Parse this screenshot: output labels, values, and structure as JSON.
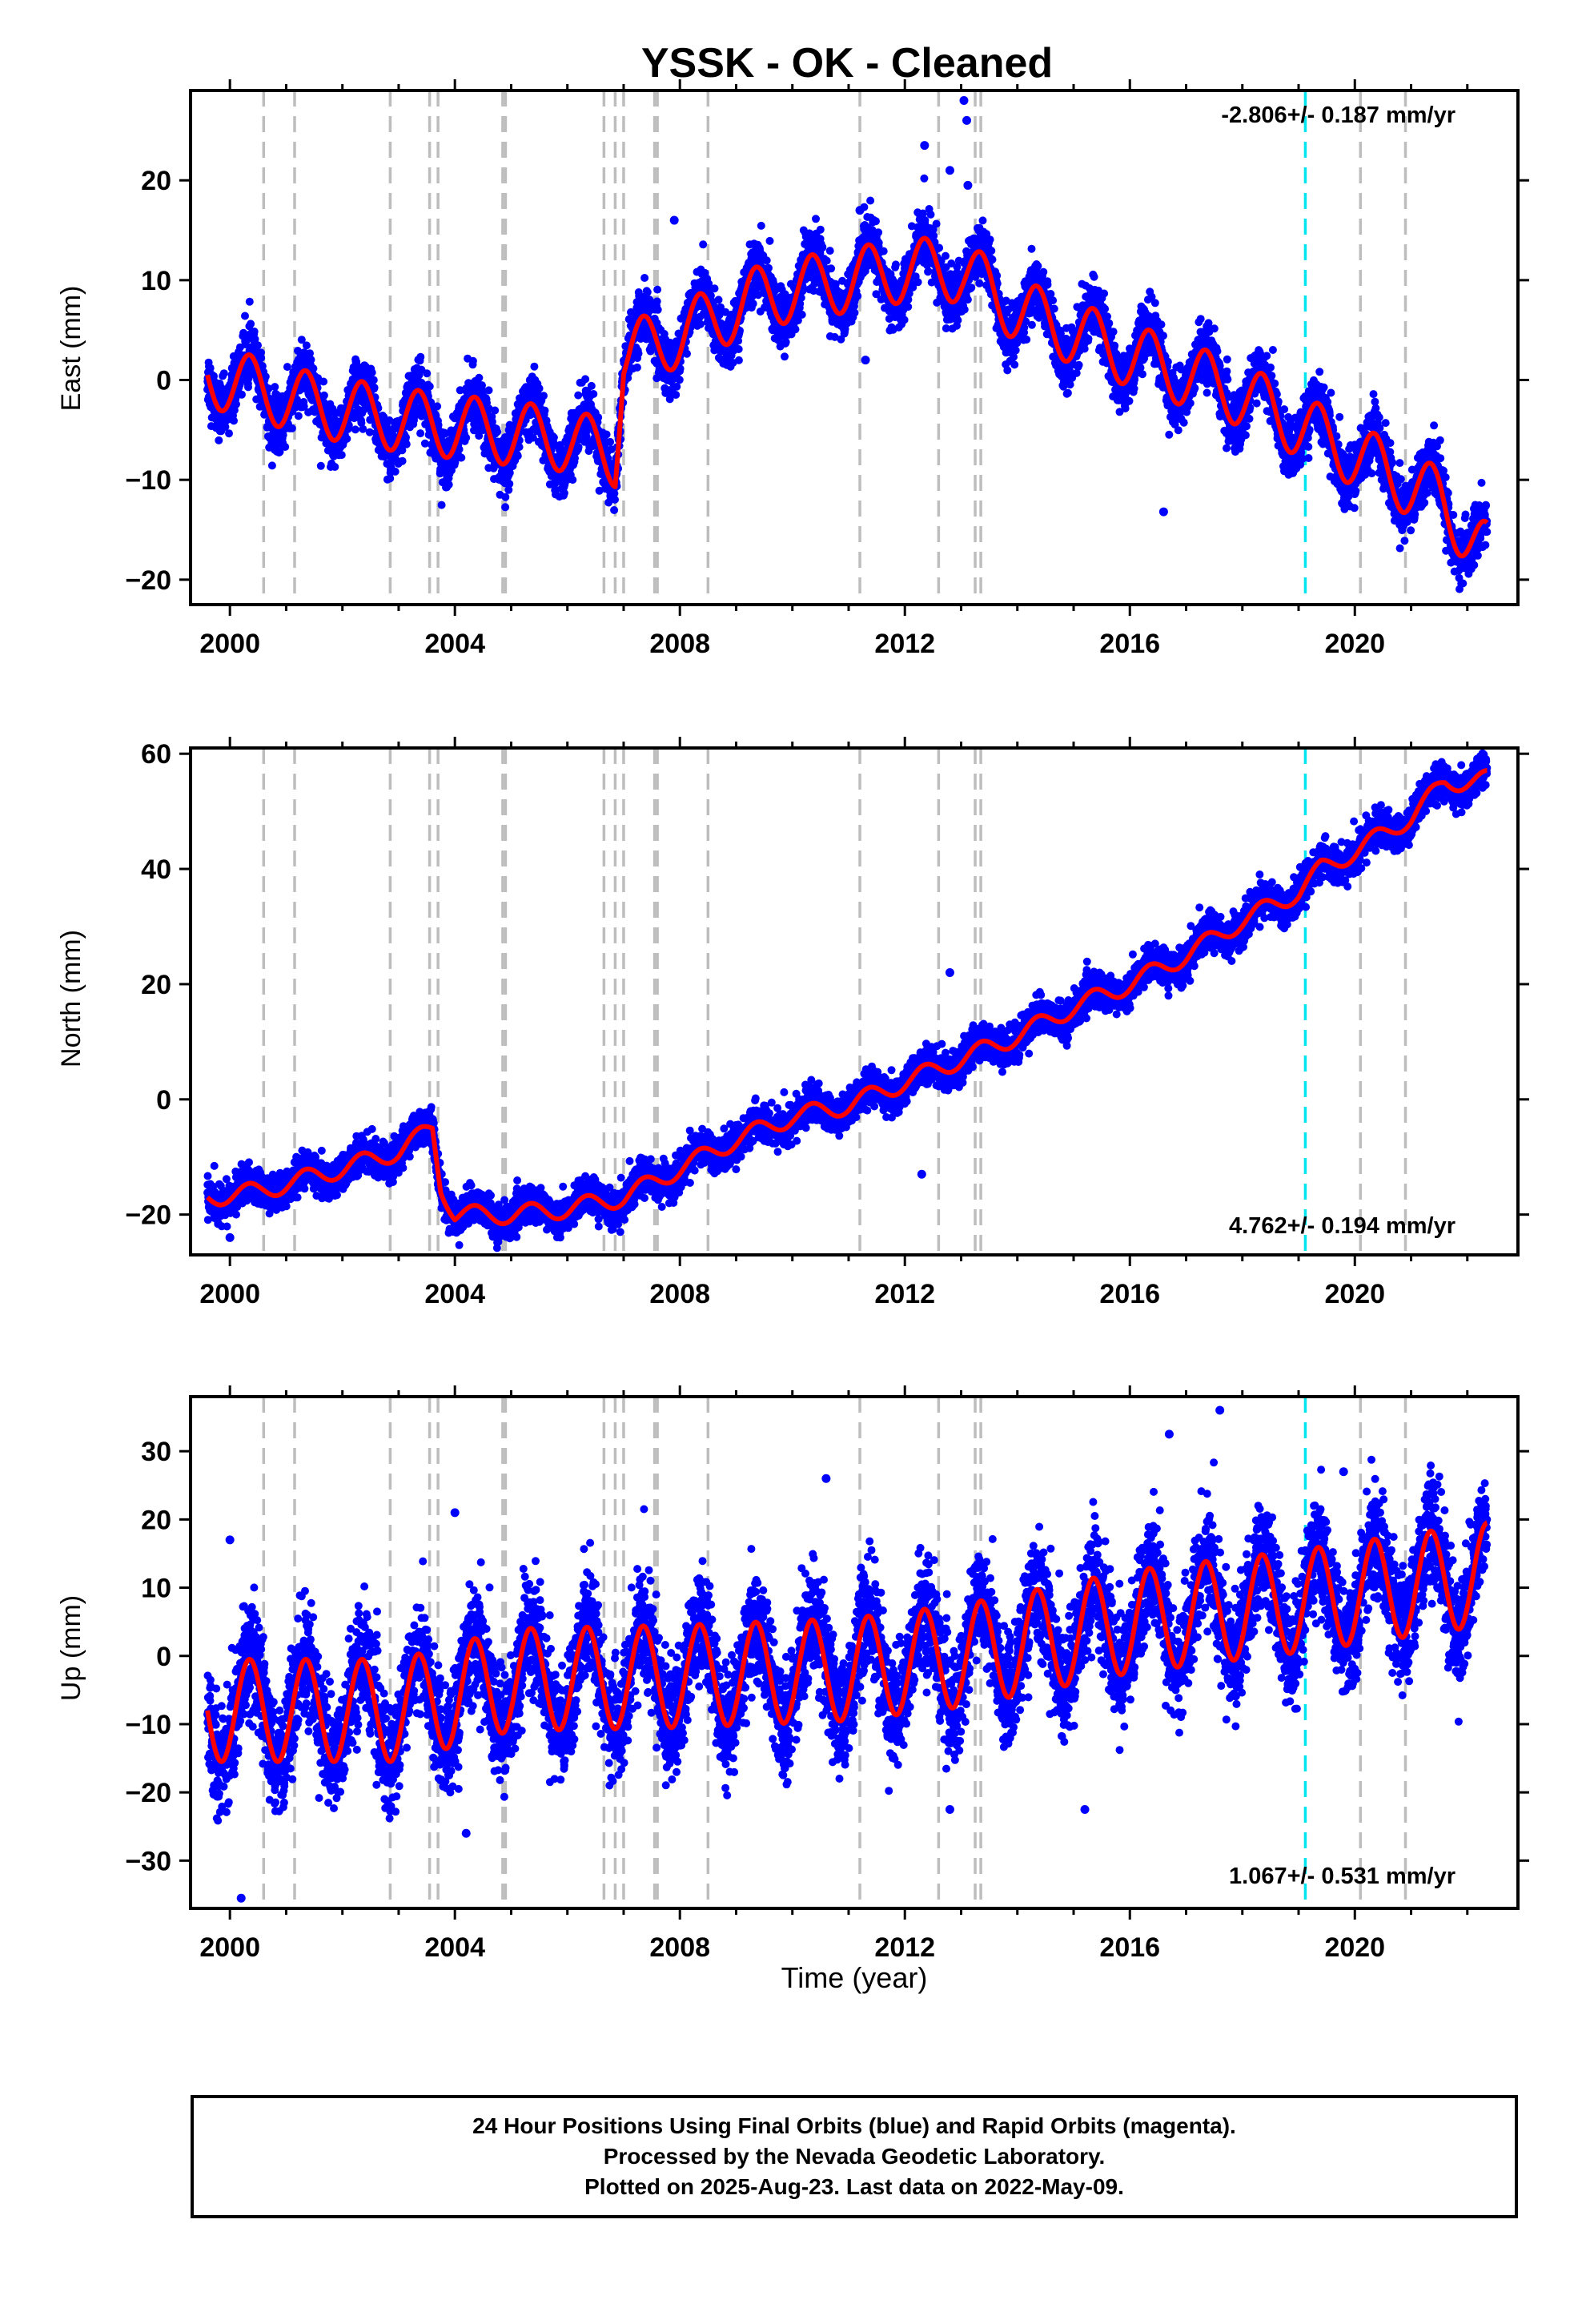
{
  "title": "YSSK  - OK - Cleaned",
  "caption": {
    "line1": "24 Hour Positions Using Final Orbits (blue) and Rapid Orbits (magenta).",
    "line2": "Processed by the Nevada Geodetic Laboratory.",
    "line3": "Plotted on 2025-Aug-23. Last data on 2022-May-09."
  },
  "colors": {
    "points": "#0000ff",
    "model": "#ff0000",
    "event_line": "#bdbdbd",
    "highlight_line": "#00e5ee",
    "axis": "#000000"
  },
  "chart_data": [
    {
      "type": "scatter",
      "id": "east",
      "ylabel": "East (mm)",
      "xlim": [
        1999.3,
        2022.9
      ],
      "ylim": [
        -22.5,
        29
      ],
      "yticks": [
        -20,
        -10,
        0,
        10,
        20
      ],
      "xticks": [
        2000,
        2004,
        2008,
        2012,
        2016,
        2020
      ],
      "rate_label": "-2.806+/- 0.187 mm/yr",
      "rate_position": "top-right",
      "data_range": [
        1999.6,
        2022.35
      ],
      "noise": 1.4,
      "seasonal_amplitude": 3.2,
      "trend_knots": [
        [
          1999.6,
          0.5
        ],
        [
          2001.5,
          -2.5
        ],
        [
          2003.0,
          -4.0
        ],
        [
          2004.5,
          -5.0
        ],
        [
          2006.0,
          -6.0
        ],
        [
          2006.85,
          -7.5
        ],
        [
          2007.0,
          2.5
        ],
        [
          2008.0,
          4.5
        ],
        [
          2009.5,
          8.5
        ],
        [
          2011.0,
          10.0
        ],
        [
          2012.0,
          11.0
        ],
        [
          2013.0,
          11.0
        ],
        [
          2014.0,
          7.0
        ],
        [
          2016.0,
          2.5
        ],
        [
          2018.0,
          -1.5
        ],
        [
          2020.0,
          -7.5
        ],
        [
          2021.5,
          -12.0
        ],
        [
          2022.35,
          -17.5
        ]
      ],
      "outliers": [
        [
          2012.35,
          23.5
        ],
        [
          2012.8,
          21.0
        ],
        [
          2013.05,
          28.0
        ],
        [
          2013.1,
          26.0
        ],
        [
          2013.12,
          19.5
        ],
        [
          2011.2,
          17.0
        ],
        [
          2016.6,
          -13.2
        ],
        [
          2007.9,
          16.0
        ],
        [
          2011.3,
          2.0
        ]
      ]
    },
    {
      "type": "scatter",
      "id": "north",
      "ylabel": "North (mm)",
      "xlim": [
        1999.3,
        2022.9
      ],
      "ylim": [
        -27,
        61
      ],
      "yticks": [
        -20,
        0,
        20,
        40,
        60
      ],
      "xticks": [
        2000,
        2004,
        2008,
        2012,
        2016,
        2020
      ],
      "rate_label": "4.762+/- 0.194 mm/yr",
      "rate_position": "bottom-right",
      "data_range": [
        1999.6,
        2022.35
      ],
      "noise": 1.5,
      "seasonal_amplitude": 1.6,
      "trend_knots": [
        [
          1999.6,
          -17.0
        ],
        [
          2000.5,
          -16.0
        ],
        [
          2002.0,
          -12.0
        ],
        [
          2003.0,
          -9.0
        ],
        [
          2003.6,
          -5.0
        ],
        [
          2003.75,
          -15.0
        ],
        [
          2004.0,
          -20.0
        ],
        [
          2005.0,
          -20.0
        ],
        [
          2006.0,
          -19.0
        ],
        [
          2007.0,
          -17.0
        ],
        [
          2008.0,
          -12.0
        ],
        [
          2009.0,
          -7.0
        ],
        [
          2010.0,
          -3.0
        ],
        [
          2011.0,
          -1.0
        ],
        [
          2012.0,
          3.0
        ],
        [
          2013.0,
          7.0
        ],
        [
          2014.0,
          11.0
        ],
        [
          2015.0,
          16.0
        ],
        [
          2016.0,
          20.0
        ],
        [
          2017.0,
          25.0
        ],
        [
          2018.0,
          31.0
        ],
        [
          2019.0,
          36.0
        ],
        [
          2019.4,
          40.0
        ],
        [
          2020.0,
          43.0
        ],
        [
          2021.0,
          49.0
        ],
        [
          2021.6,
          55.0
        ],
        [
          2022.35,
          55.5
        ]
      ],
      "outliers": [
        [
          2012.8,
          22.0
        ],
        [
          2012.3,
          -13.0
        ],
        [
          2000.0,
          -24.0
        ]
      ]
    },
    {
      "type": "scatter",
      "id": "up",
      "ylabel": "Up (mm)",
      "xlim": [
        1999.3,
        2022.9
      ],
      "ylim": [
        -37,
        38
      ],
      "yticks": [
        -30,
        -20,
        -10,
        0,
        10,
        20,
        30
      ],
      "xticks": [
        2000,
        2004,
        2008,
        2012,
        2016,
        2020
      ],
      "xlabel": "Time (year)",
      "rate_label": "1.067+/- 0.531 mm/yr",
      "rate_position": "bottom-right",
      "data_range": [
        1999.6,
        2022.35
      ],
      "noise": 4.0,
      "seasonal_amplitude": 7.5,
      "trend_knots": [
        [
          1999.6,
          -8.0
        ],
        [
          2003.0,
          -8.0
        ],
        [
          2005.0,
          -3.5
        ],
        [
          2008.0,
          -3.0
        ],
        [
          2011.0,
          -2.0
        ],
        [
          2013.0,
          0.0
        ],
        [
          2016.0,
          5.0
        ],
        [
          2019.0,
          8.0
        ],
        [
          2022.35,
          12.0
        ]
      ],
      "outliers": [
        [
          2017.6,
          36.0
        ],
        [
          2016.7,
          32.5
        ],
        [
          2000.2,
          -35.5
        ],
        [
          2000.0,
          17.0
        ],
        [
          2015.2,
          -22.5
        ],
        [
          2012.8,
          -22.5
        ],
        [
          2010.6,
          26.0
        ],
        [
          2019.8,
          27.0
        ],
        [
          2004.2,
          -26.0
        ],
        [
          2004.0,
          21.0
        ]
      ]
    }
  ],
  "event_lines": [
    2000.6,
    2001.15,
    2002.85,
    2003.55,
    2003.7,
    2004.85,
    2004.9,
    2006.65,
    2006.85,
    2007.0,
    2007.55,
    2007.6,
    2008.5,
    2011.2,
    2012.6,
    2013.25,
    2013.35,
    2020.1,
    2020.9
  ],
  "highlight_event_line": 2019.12
}
